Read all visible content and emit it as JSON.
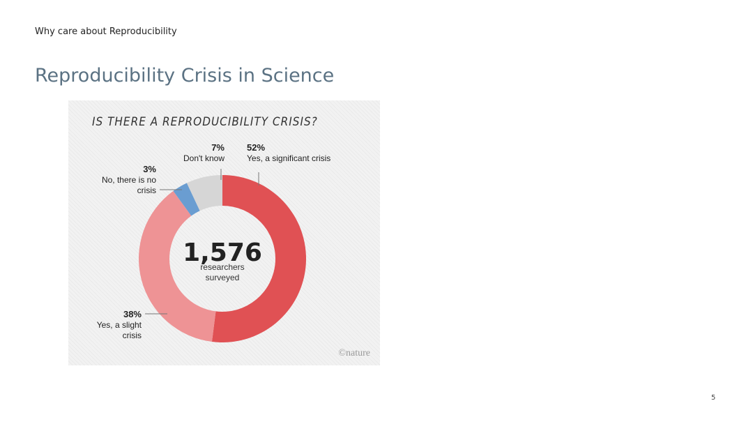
{
  "slide": {
    "breadcrumb": "Why care about Reproducibility",
    "title": "Reproducibility Crisis in Science",
    "page_number": "5"
  },
  "chart_data": {
    "type": "pie",
    "donut": true,
    "title": "IS THERE A REPRODUCIBILITY CRISIS?",
    "center_value": "1,576",
    "center_label_line1": "researchers",
    "center_label_line2": "surveyed",
    "source_mark": "©nature",
    "slices": [
      {
        "pct": "52%",
        "value": 52,
        "label_lines": [
          "Yes, a significant crisis"
        ],
        "color": "#e05154"
      },
      {
        "pct": "38%",
        "value": 38,
        "label_lines": [
          "Yes, a slight",
          "crisis"
        ],
        "color": "#ee9395"
      },
      {
        "pct": "3%",
        "value": 3,
        "label_lines": [
          "No, there is no",
          "crisis"
        ],
        "color": "#6a9dd1"
      },
      {
        "pct": "7%",
        "value": 7,
        "label_lines": [
          "Don't know"
        ],
        "color": "#d6d6d6"
      }
    ]
  }
}
